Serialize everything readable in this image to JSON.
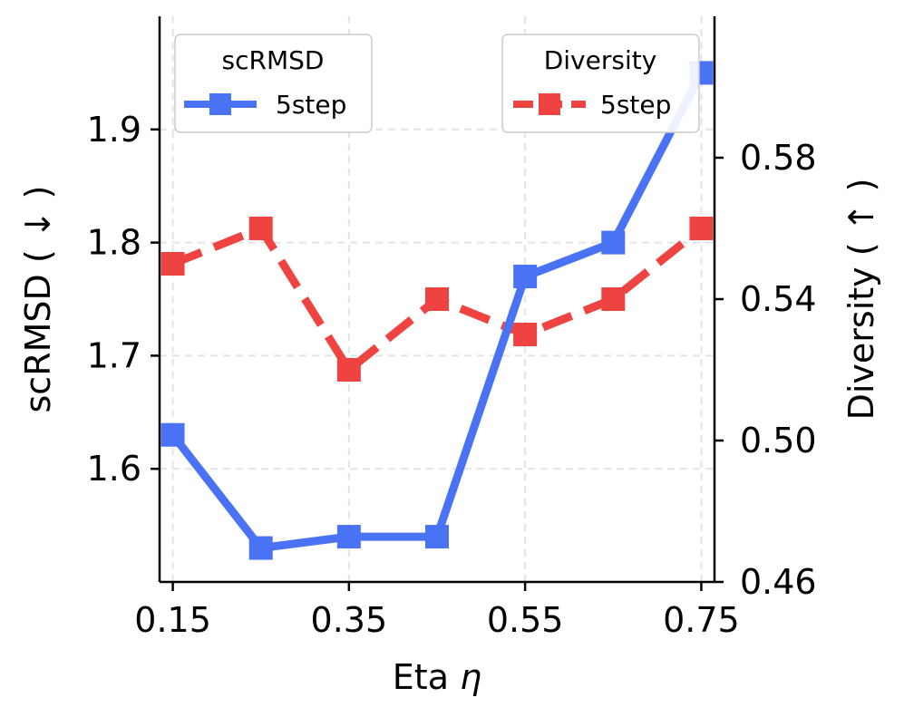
{
  "chart_data": {
    "type": "line",
    "xlabel": "Eta",
    "xlabel_symbol": "η",
    "x": [
      0.15,
      0.25,
      0.35,
      0.45,
      0.55,
      0.65,
      0.75
    ],
    "xticks": [
      "0.15",
      "0.35",
      "0.55",
      "0.75"
    ],
    "xlim": [
      0.135,
      0.765
    ],
    "left_axis": {
      "label": "scRMSD ( ↓ )",
      "ylim": [
        1.5,
        2.0
      ],
      "ticks": [
        "1.6",
        "1.7",
        "1.8",
        "1.9"
      ]
    },
    "right_axis": {
      "label": "Diversity ( ↑ )",
      "ylim": [
        0.46,
        0.62
      ],
      "ticks": [
        "0.46",
        "0.50",
        "0.54",
        "0.58"
      ]
    },
    "grid": true,
    "series": [
      {
        "name": "5step",
        "axis": "left",
        "legend_title": "scRMSD",
        "legend_position": "top-left",
        "color": "#4a72f5",
        "linestyle": "solid",
        "marker": "square",
        "values": [
          1.63,
          1.53,
          1.54,
          1.54,
          1.77,
          1.8,
          1.95
        ]
      },
      {
        "name": "5step",
        "axis": "right",
        "legend_title": "Diversity",
        "legend_position": "top-right",
        "color": "#ee4340",
        "linestyle": "dashed",
        "marker": "square",
        "values": [
          0.55,
          0.56,
          0.52,
          0.54,
          0.53,
          0.54,
          0.56
        ]
      }
    ]
  }
}
